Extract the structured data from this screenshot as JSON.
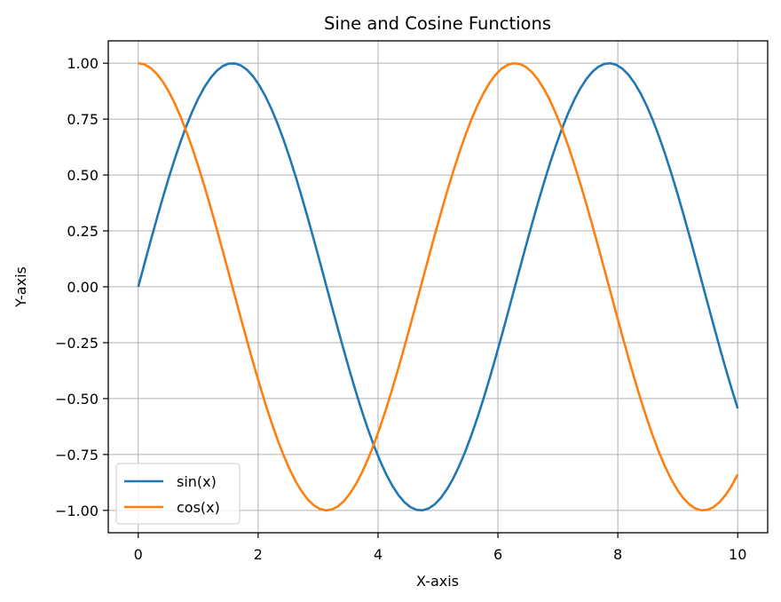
{
  "chart_data": {
    "type": "line",
    "title": "Sine and Cosine Functions",
    "xlabel": "X-axis",
    "ylabel": "Y-axis",
    "xlim": [
      -0.5,
      10.5
    ],
    "ylim": [
      -1.1,
      1.1
    ],
    "xticks": [
      0,
      2,
      4,
      6,
      8,
      10
    ],
    "xtick_labels": [
      "0",
      "2",
      "4",
      "6",
      "8",
      "10"
    ],
    "yticks": [
      1.0,
      0.75,
      0.5,
      0.25,
      0.0,
      -0.25,
      -0.5,
      -0.75,
      -1.0
    ],
    "ytick_labels": [
      "1.00",
      "0.75",
      "0.50",
      "0.25",
      "0.00",
      "−0.25",
      "−0.50",
      "−0.75",
      "−1.00"
    ],
    "grid": true,
    "legend_position": "lower-left",
    "x_range": [
      0,
      10
    ],
    "num_points": 100,
    "series": [
      {
        "name": "sin(x)",
        "function": "sin",
        "color": "#1f77b4"
      },
      {
        "name": "cos(x)",
        "function": "cos",
        "color": "#ff7f0e"
      }
    ]
  }
}
